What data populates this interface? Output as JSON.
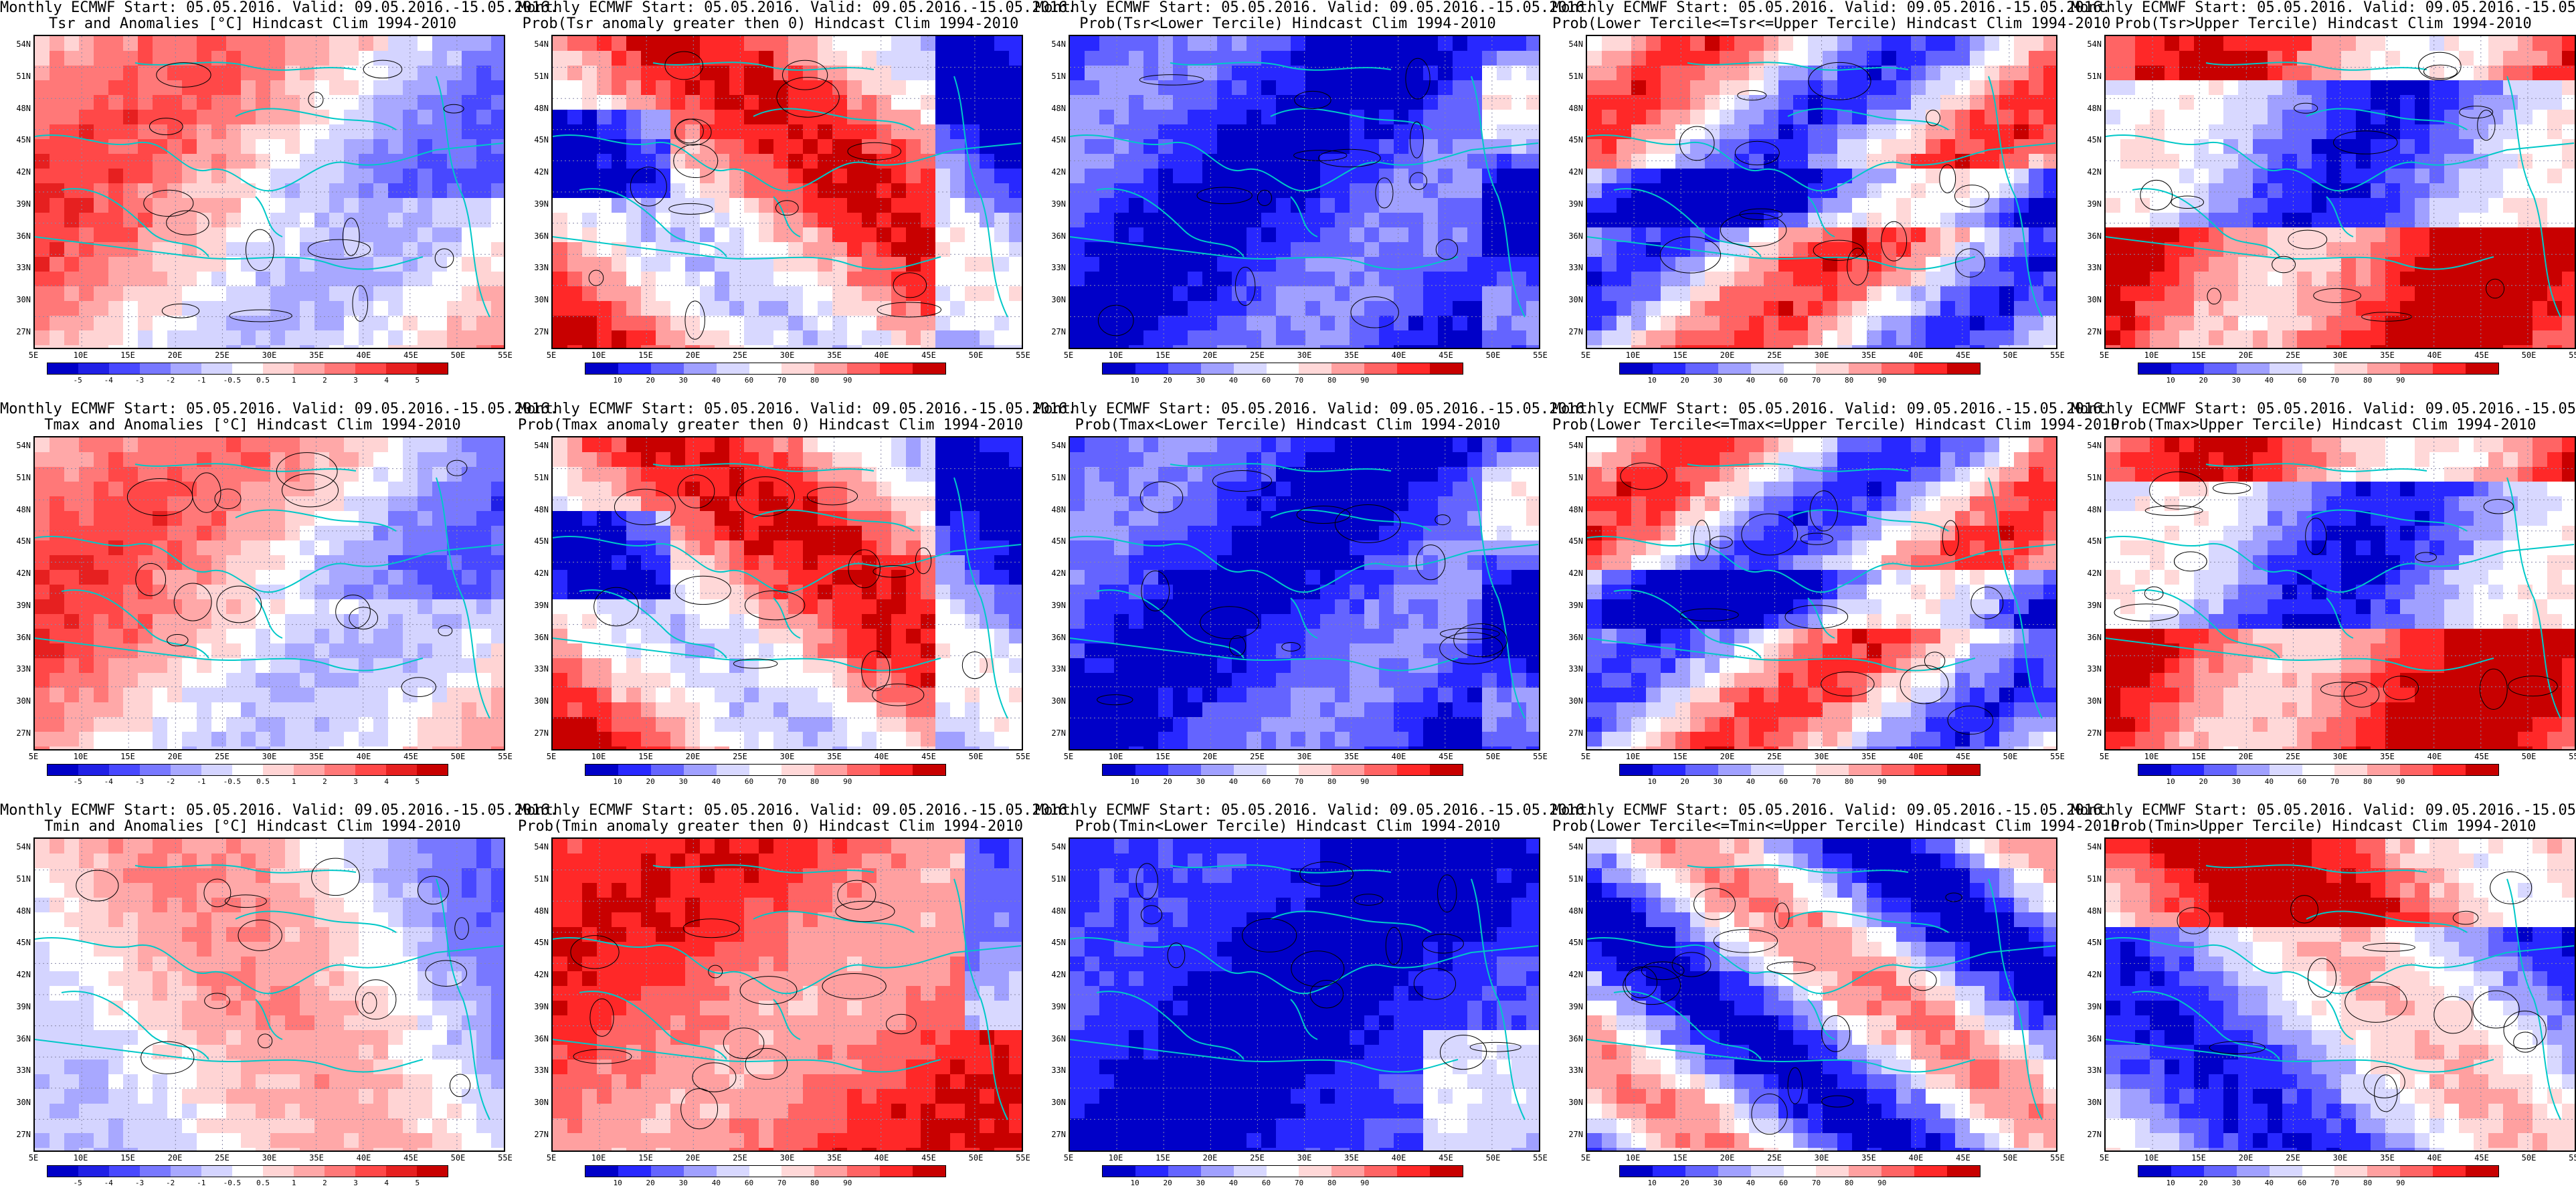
{
  "header_text": "Monthly ECMWF Start: 05.05.2016. Valid: 09.05.2016.-15.05.2016.",
  "lat_labels": [
    "54N",
    "51N",
    "48N",
    "45N",
    "42N",
    "39N",
    "36N",
    "33N",
    "30N",
    "27N"
  ],
  "lon_labels": [
    "5E",
    "10E",
    "15E",
    "20E",
    "25E",
    "30E",
    "35E",
    "40E",
    "45E",
    "50E",
    "55E"
  ],
  "anom_ticks": [
    "-5",
    "-4",
    "-3",
    "-2",
    "-1",
    "-0.5",
    "0.5",
    "1",
    "2",
    "3",
    "4",
    "5"
  ],
  "prob_ticks": [
    "10",
    "20",
    "30",
    "40",
    "60",
    "70",
    "80",
    "90"
  ],
  "colors": {
    "anom_scale": [
      "#0000c8",
      "#2020e6",
      "#4848ff",
      "#7878ff",
      "#a8a8ff",
      "#d4d4ff",
      "#ffffff",
      "#ffd4d4",
      "#ffa8a8",
      "#ff7878",
      "#ff4848",
      "#e62020",
      "#c80000"
    ],
    "prob_scale": [
      "#0000c8",
      "#2828ff",
      "#6464ff",
      "#a0a0ff",
      "#d8d8ff",
      "#ffffff",
      "#ffd8d8",
      "#ffa0a0",
      "#ff6464",
      "#ff2828",
      "#c80000"
    ],
    "coast": "#00c8c8"
  },
  "rows": [
    {
      "panels": [
        {
          "type": "anom",
          "line2": "Tsr and Anomalies [°C] Hindcast Clim 1994-2010"
        },
        {
          "type": "prob",
          "line2": "Prob(Tsr anomaly greater then 0) Hindcast Clim 1994-2010"
        },
        {
          "type": "prob",
          "line2": "Prob(Tsr<Lower Tercile) Hindcast Clim 1994-2010"
        },
        {
          "type": "prob",
          "line2": "Prob(Lower Tercile<=Tsr<=Upper Tercile) Hindcast Clim 1994-2010"
        },
        {
          "type": "prob",
          "line2": "Prob(Tsr>Upper Tercile) Hindcast Clim 1994-2010"
        }
      ]
    },
    {
      "panels": [
        {
          "type": "anom",
          "line2": "Tmax and Anomalies [°C] Hindcast Clim 1994-2010"
        },
        {
          "type": "prob",
          "line2": "Prob(Tmax anomaly greater then 0) Hindcast Clim 1994-2010"
        },
        {
          "type": "prob",
          "line2": "Prob(Tmax<Lower Tercile) Hindcast Clim 1994-2010"
        },
        {
          "type": "prob",
          "line2": "Prob(Lower Tercile<=Tmax<=Upper Tercile) Hindcast Clim 1994-2010"
        },
        {
          "type": "prob",
          "line2": "Prob(Tmax>Upper Tercile) Hindcast Clim 1994-2010"
        }
      ]
    },
    {
      "panels": [
        {
          "type": "anom",
          "line2": "Tmin and Anomalies [°C] Hindcast Clim 1994-2010"
        },
        {
          "type": "prob",
          "line2": "Prob(Tmin anomaly greater then 0) Hindcast Clim 1994-2010"
        },
        {
          "type": "prob",
          "line2": "Prob(Tmin<Lower Tercile) Hindcast Clim 1994-2010"
        },
        {
          "type": "prob",
          "line2": "Prob(Lower Tercile<=Tmin<=Upper Tercile) Hindcast Clim 1994-2010"
        },
        {
          "type": "prob",
          "line2": "Prob(Tmin>Upper Tercile) Hindcast Clim 1994-2010"
        }
      ]
    }
  ]
}
